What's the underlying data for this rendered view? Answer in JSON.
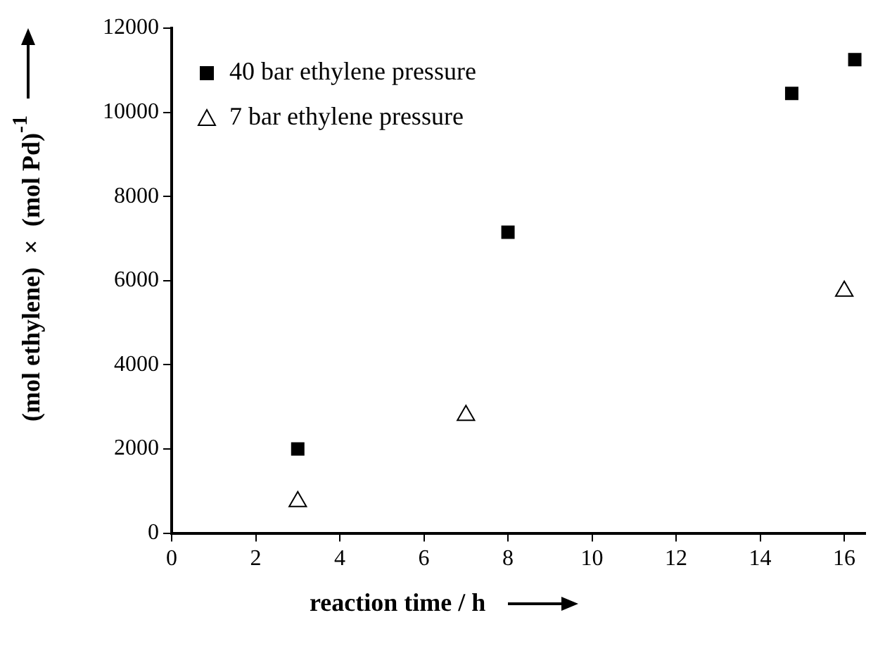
{
  "chart_data": {
    "type": "scatter",
    "xlabel": "reaction time / h",
    "ylabel": "(mol ethylene) × (mol Pd)$^{-1}$",
    "xlim": [
      0,
      16.5
    ],
    "xticks": [
      0,
      2,
      4,
      6,
      8,
      10,
      12,
      14,
      16
    ],
    "ylim": [
      0,
      12000
    ],
    "yticks": [
      0,
      2000,
      4000,
      6000,
      8000,
      10000,
      12000
    ],
    "grid": false,
    "legend": "top left",
    "series": [
      {
        "name": "40 bar ethylene pressure",
        "color": "#000000",
        "marker": "square",
        "x": [
          3,
          8,
          14.75,
          16.25
        ],
        "values": [
          2000,
          7150,
          10450,
          11250
        ]
      },
      {
        "name": "7 bar ethylene pressure",
        "color": "#000000",
        "marker": "triangle",
        "x": [
          3,
          7,
          16
        ],
        "values": [
          750,
          2800,
          5750
        ]
      }
    ]
  }
}
